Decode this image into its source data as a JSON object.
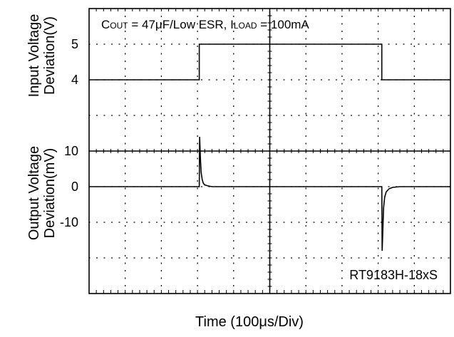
{
  "chart_data": {
    "type": "line",
    "title": "",
    "conditions": {
      "cout_prefix": "C",
      "cout_sub": "OUT",
      "cout_rest": " = 47μF/Low ESR, I",
      "iload_sub": "LOAD",
      "iload_rest": " = 100mA"
    },
    "device_label": "RT9183H-18xS",
    "xlabel": "Time (100μs/Div)",
    "x_divisions": 10,
    "y_divisions": 8,
    "top_panel": {
      "ylabel_line1": "Input Voltage",
      "ylabel_line2": "Deviation(V)",
      "tick_labels": [
        "5",
        "4"
      ],
      "tick_values": [
        5,
        4
      ],
      "ylim": [
        2,
        6
      ],
      "series": {
        "x": [
          0,
          3.05,
          3.05,
          8.1,
          8.1,
          10
        ],
        "y": [
          4,
          4,
          5,
          5,
          4,
          4
        ]
      }
    },
    "bottom_panel": {
      "ylabel_line1": "Output Voltage",
      "ylabel_line2": "Deviation(mV)",
      "tick_labels": [
        "10",
        "0",
        "-10"
      ],
      "tick_values": [
        10,
        0,
        -10
      ],
      "ylim": [
        -30,
        10
      ],
      "series": {
        "x": [
          0,
          3.05,
          3.06,
          3.08,
          3.1,
          3.13,
          3.16,
          3.2,
          3.3,
          3.4,
          3.6,
          8.1,
          8.11,
          8.13,
          8.15,
          8.18,
          8.22,
          8.3,
          8.4,
          8.6,
          10
        ],
        "y": [
          0,
          0,
          14,
          8,
          4,
          2,
          1,
          0.5,
          0.2,
          0,
          0,
          0,
          -18,
          -12,
          -6,
          -3,
          -1.5,
          -0.6,
          -0.2,
          0,
          0
        ]
      }
    }
  }
}
